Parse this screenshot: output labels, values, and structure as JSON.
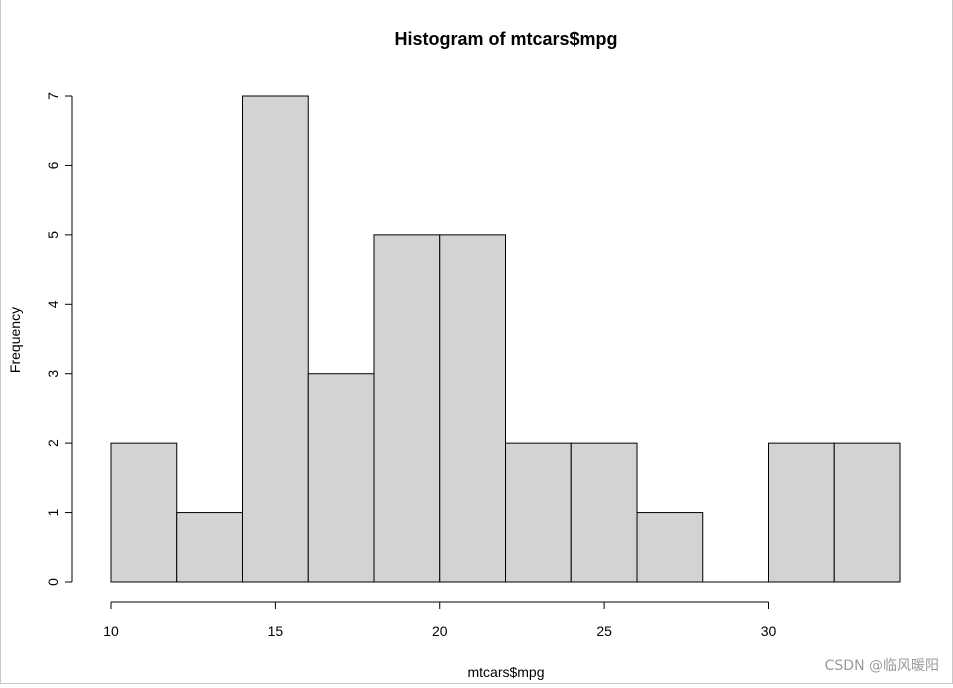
{
  "chart_data": {
    "type": "bar",
    "title": "Histogram of mtcars$mpg",
    "xlabel": "mtcars$mpg",
    "ylabel": "Frequency",
    "bins": [
      {
        "from": 10,
        "to": 12,
        "count": 2
      },
      {
        "from": 12,
        "to": 14,
        "count": 1
      },
      {
        "from": 14,
        "to": 16,
        "count": 7
      },
      {
        "from": 16,
        "to": 18,
        "count": 3
      },
      {
        "from": 18,
        "to": 20,
        "count": 5
      },
      {
        "from": 20,
        "to": 22,
        "count": 5
      },
      {
        "from": 22,
        "to": 24,
        "count": 2
      },
      {
        "from": 24,
        "to": 26,
        "count": 2
      },
      {
        "from": 26,
        "to": 28,
        "count": 1
      },
      {
        "from": 28,
        "to": 30,
        "count": 0
      },
      {
        "from": 30,
        "to": 32,
        "count": 2
      },
      {
        "from": 32,
        "to": 34,
        "count": 2
      }
    ],
    "xticks": [
      10,
      15,
      20,
      25,
      30
    ],
    "yticks": [
      0,
      1,
      2,
      3,
      4,
      5,
      6,
      7
    ],
    "xlim": [
      10,
      34
    ],
    "ylim": [
      0,
      7
    ],
    "bar_fill": "#d3d3d3",
    "bar_stroke": "#000000",
    "grid": false
  },
  "watermark": "CSDN @临风暖阳"
}
